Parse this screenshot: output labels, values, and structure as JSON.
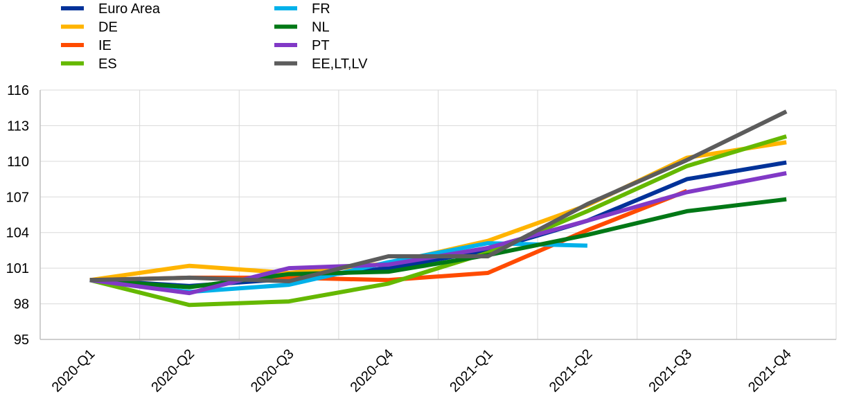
{
  "chart_data": {
    "type": "line",
    "title": "",
    "xlabel": "",
    "ylabel": "",
    "categories": [
      "2020-Q1",
      "2020-Q2",
      "2020-Q3",
      "2020-Q4",
      "2021-Q1",
      "2021-Q2",
      "2021-Q3",
      "2021-Q4"
    ],
    "ylim": [
      95,
      116
    ],
    "yticks": [
      "95",
      "98",
      "101",
      "104",
      "107",
      "110",
      "113",
      "116"
    ],
    "grid": true,
    "legend_position": "top-left",
    "series": [
      {
        "name": "Euro Area",
        "color": "#003299",
        "values": [
          100,
          99.5,
          100.1,
          101.0,
          102.5,
          105.0,
          108.5,
          109.9
        ]
      },
      {
        "name": "DE",
        "color": "#FFB400",
        "values": [
          100,
          101.2,
          100.6,
          101.4,
          103.3,
          106.3,
          110.3,
          111.6
        ]
      },
      {
        "name": "IE",
        "color": "#FF4B00",
        "values": [
          100,
          100.2,
          100.2,
          100.0,
          100.6,
          104.2,
          107.5,
          null
        ]
      },
      {
        "name": "ES",
        "color": "#65B800",
        "values": [
          100,
          97.9,
          98.2,
          99.7,
          102.3,
          105.8,
          109.6,
          112.1
        ]
      },
      {
        "name": "FR",
        "color": "#00B1EA",
        "values": [
          100,
          99.0,
          99.6,
          101.5,
          103.1,
          102.9,
          null,
          null
        ]
      },
      {
        "name": "NL",
        "color": "#007816",
        "values": [
          100,
          99.4,
          100.5,
          100.7,
          102.1,
          103.8,
          105.8,
          106.8
        ]
      },
      {
        "name": "PT",
        "color": "#8139C6",
        "values": [
          100,
          98.9,
          101.0,
          101.3,
          102.7,
          105.0,
          107.4,
          109.0
        ]
      },
      {
        "name": "EE,LT,LV",
        "color": "#5C5C5C",
        "values": [
          100,
          100.2,
          99.9,
          102.0,
          102.0,
          106.4,
          110.1,
          114.2
        ]
      }
    ]
  }
}
